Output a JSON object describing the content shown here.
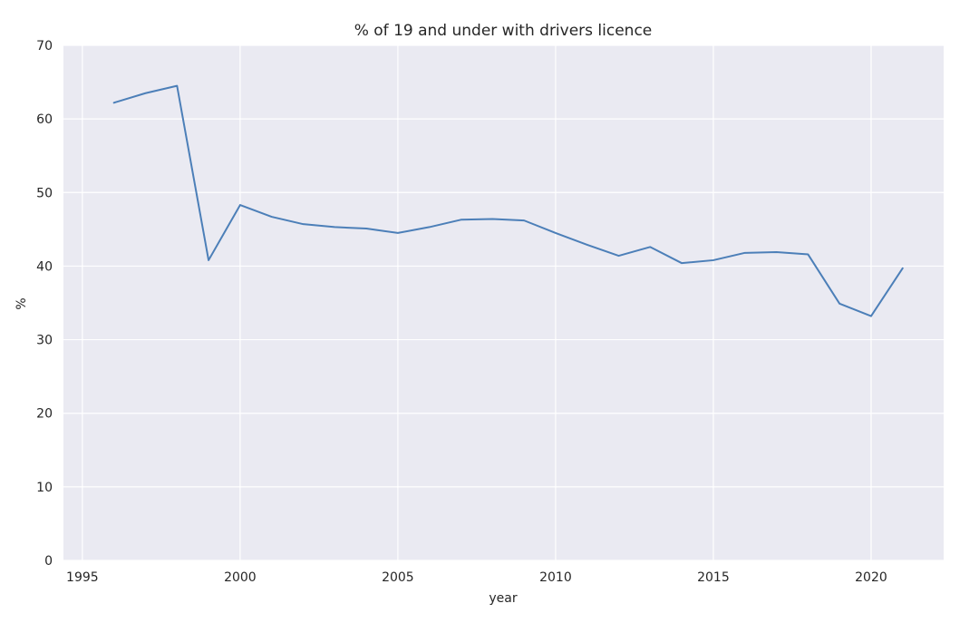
{
  "chart_data": {
    "type": "line",
    "title": "% of 19 and under with drivers licence",
    "xlabel": "year",
    "ylabel": "%",
    "xlim": [
      1994.4,
      2022.3
    ],
    "ylim": [
      0,
      70
    ],
    "grid": true,
    "x_ticks": [
      1995,
      2000,
      2005,
      2010,
      2015,
      2020
    ],
    "y_ticks": [
      0,
      10,
      20,
      30,
      40,
      50,
      60,
      70
    ],
    "series_color": "#4c7fb8",
    "background_color": "#eaeaf2",
    "x": [
      1996,
      1997,
      1998,
      1999,
      2000,
      2001,
      2002,
      2003,
      2004,
      2005,
      2006,
      2007,
      2008,
      2009,
      2010,
      2011,
      2012,
      2013,
      2014,
      2015,
      2016,
      2017,
      2018,
      2019,
      2020,
      2021
    ],
    "y": [
      62.2,
      63.5,
      64.5,
      40.8,
      48.3,
      46.7,
      45.7,
      45.3,
      45.1,
      44.5,
      45.3,
      46.3,
      46.4,
      46.2,
      44.5,
      42.9,
      41.4,
      42.6,
      40.4,
      40.8,
      41.8,
      41.9,
      41.6,
      34.9,
      33.2,
      39.7
    ]
  }
}
